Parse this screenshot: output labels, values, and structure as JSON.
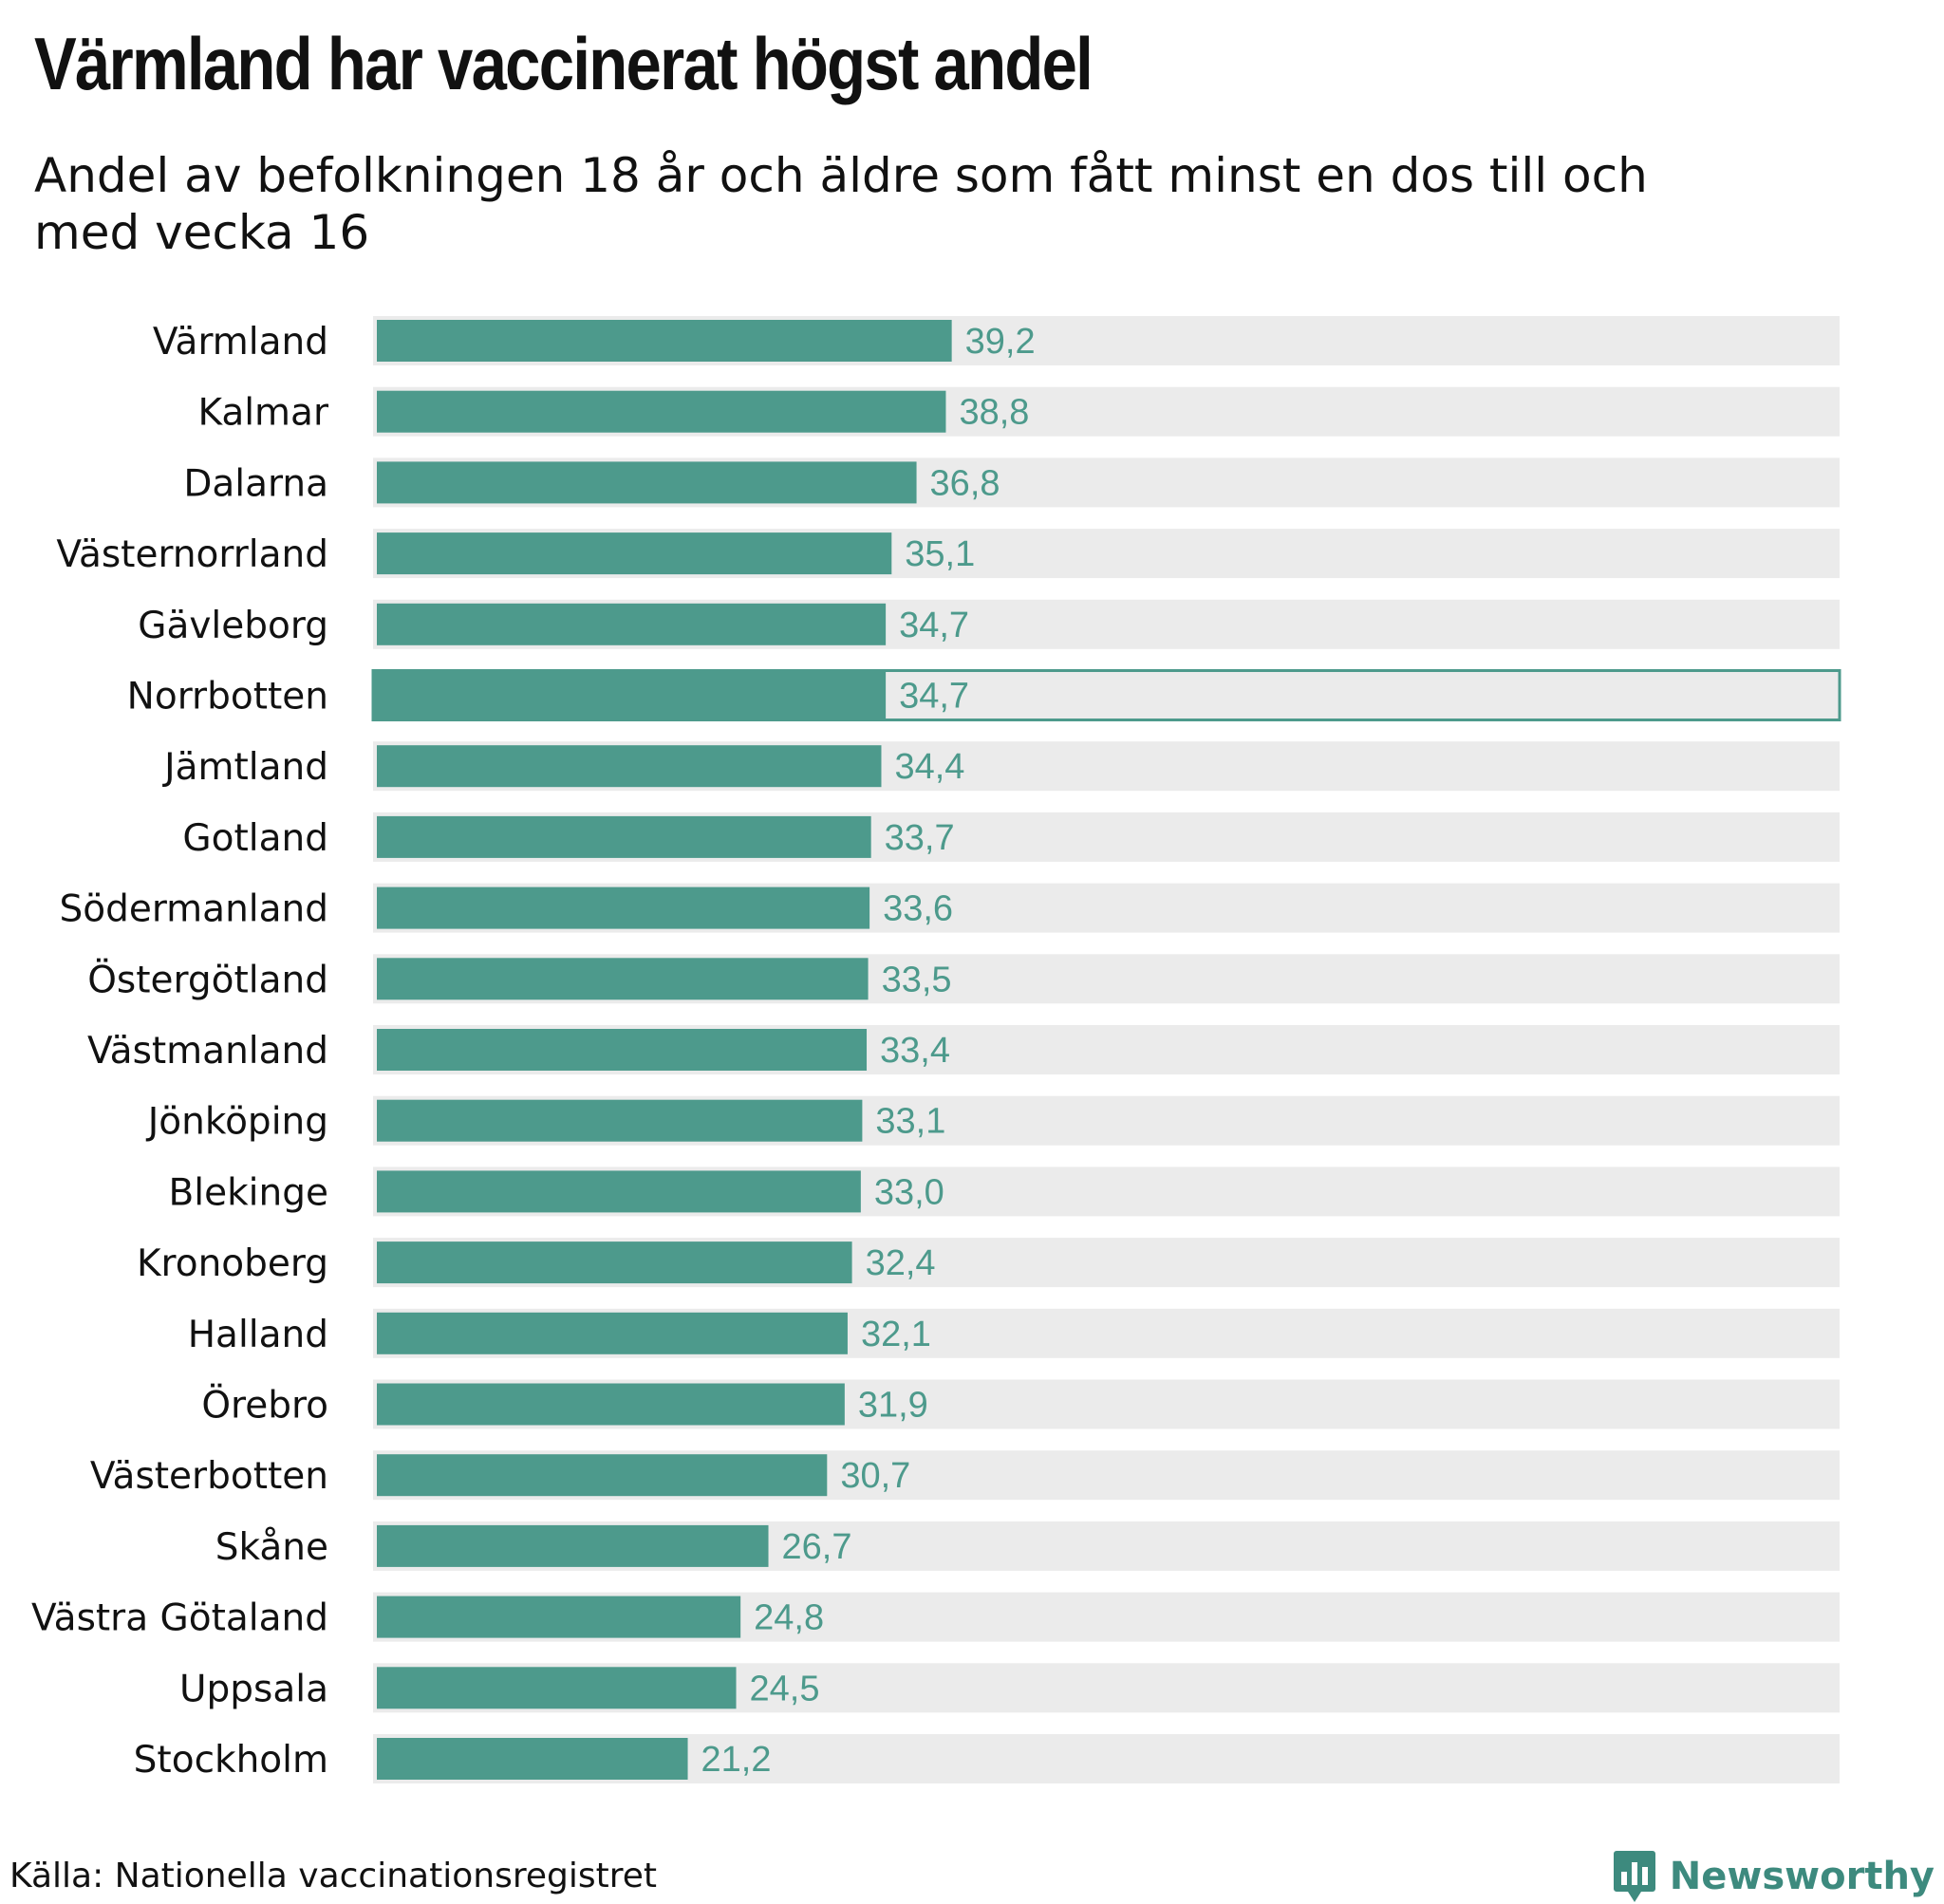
{
  "header": {
    "title": "Värmland har vaccinerat högst andel",
    "subtitle": "Andel av befolkningen 18 år och äldre som fått minst en dos till och med vecka 16"
  },
  "footer": {
    "source": "Källa: Nationella vaccinationsregistret",
    "brand": "Newsworthy",
    "brand_icon": "bar-chart-speech-bubble-icon"
  },
  "colors": {
    "bar": "#4d9a8c",
    "track": "#ebebeb",
    "value_label": "#4d9a8c",
    "category_label": "#111111"
  },
  "chart_data": {
    "type": "bar",
    "orientation": "horizontal",
    "title": "Värmland har vaccinerat högst andel",
    "subtitle": "Andel av befolkningen 18 år och äldre som fått minst en dos till och med vecka 16",
    "xlabel": "",
    "ylabel": "",
    "xlim": [
      0,
      100
    ],
    "grid": false,
    "legend": "none",
    "highlighted": "Norrbotten",
    "categories": [
      "Värmland",
      "Kalmar",
      "Dalarna",
      "Västernorrland",
      "Gävleborg",
      "Norrbotten",
      "Jämtland",
      "Gotland",
      "Södermanland",
      "Östergötland",
      "Västmanland",
      "Jönköping",
      "Blekinge",
      "Kronoberg",
      "Halland",
      "Örebro",
      "Västerbotten",
      "Skåne",
      "Västra Götaland",
      "Uppsala",
      "Stockholm"
    ],
    "values": [
      39.2,
      38.8,
      36.8,
      35.1,
      34.7,
      34.7,
      34.4,
      33.7,
      33.6,
      33.5,
      33.4,
      33.1,
      33.0,
      32.4,
      32.1,
      31.9,
      30.7,
      26.7,
      24.8,
      24.5,
      21.2
    ],
    "value_labels": [
      "39,2",
      "38,8",
      "36,8",
      "35,1",
      "34,7",
      "34,7",
      "34,4",
      "33,7",
      "33,6",
      "33,5",
      "33,4",
      "33,1",
      "33,0",
      "32,4",
      "32,1",
      "31,9",
      "30,7",
      "26,7",
      "24,8",
      "24,5",
      "21,2"
    ]
  }
}
